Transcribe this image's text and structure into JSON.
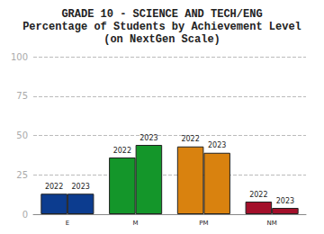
{
  "chart_data": {
    "type": "bar",
    "title": "GRADE 10 - SCIENCE AND TECH/ENG\nPercentage of Students by Achievement Level\n(on NextGen Scale)",
    "categories": [
      "E",
      "M",
      "PM",
      "NM"
    ],
    "series": [
      {
        "name": "2022",
        "values": [
          13,
          36,
          43,
          8
        ]
      },
      {
        "name": "2023",
        "values": [
          13,
          44,
          39,
          4
        ]
      }
    ],
    "colors": [
      "#0c3c8f",
      "#14962a",
      "#d9820f",
      "#a30f2a"
    ],
    "ylim": [
      0,
      100
    ],
    "yticks": [
      0,
      25,
      50,
      75,
      100
    ],
    "grid": true
  }
}
